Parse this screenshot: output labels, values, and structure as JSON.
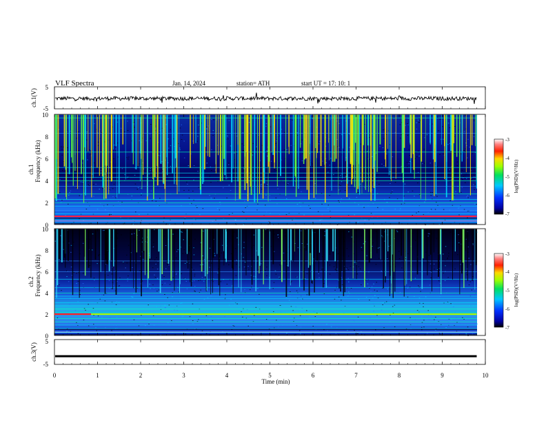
{
  "header": {
    "title": "VLF  Spectra",
    "date": "Jan. 14, 2024",
    "station": "station= ATH",
    "start": "start  UT  =    17: 10: 1"
  },
  "chart_data": [
    {
      "type": "line",
      "panel": "ch1-waveform",
      "ylabel": "ch.1(V)",
      "ylim": [
        -5,
        5
      ],
      "yticks": [
        "5",
        "-5"
      ],
      "x_range_min": [
        0,
        10
      ],
      "trace": "noisy waveform around -0.3 V"
    },
    {
      "type": "heatmap",
      "panel": "ch1-spectrogram",
      "ylabel_top": "ch.1",
      "ylabel": "Frequency  (kHz)",
      "ylim": [
        0,
        10
      ],
      "yticks": [
        "0",
        "2",
        "4",
        "6",
        "8",
        "10"
      ],
      "colorbar": {
        "label": "log(PSD)(V²/Hz)",
        "ticks": [
          "-3",
          "-4",
          "-5",
          "-6",
          "-7"
        ],
        "range": [
          -7,
          -3
        ]
      },
      "bands_khz": [
        0.2,
        0.5,
        1.0,
        1.3,
        1.7,
        2.0,
        2.3,
        2.8,
        3.5,
        4.0,
        4.3,
        4.7,
        5.2,
        6.6,
        8.3,
        9.7
      ],
      "strong_lines": [
        {
          "freq_khz": 0.75,
          "t_start_min": 0,
          "t_end_min": 9.8,
          "color": "#ff2040"
        }
      ]
    },
    {
      "type": "heatmap",
      "panel": "ch2-spectrogram",
      "ylabel_top": "ch.2",
      "ylabel": "Frequency  (kHz)",
      "ylim": [
        0,
        10
      ],
      "yticks": [
        "0",
        "2",
        "4",
        "6",
        "8",
        "10"
      ],
      "colorbar": {
        "label": "log(PSD)(V²/Hz)",
        "ticks": [
          "-3",
          "-4",
          "-5",
          "-6",
          "-7"
        ],
        "range": [
          -7,
          -3
        ]
      },
      "bands_khz": [
        0.3,
        0.7,
        1.0,
        1.3,
        1.6,
        2.0,
        2.2,
        2.5,
        2.8,
        3.1,
        3.5,
        3.7,
        4.0,
        4.5,
        5.3,
        6.0,
        7.0
      ],
      "strong_lines": [
        {
          "freq_khz": 2.0,
          "t_start_min": 0,
          "t_end_min": 0.85,
          "color": "#ff2020"
        },
        {
          "freq_khz": 2.0,
          "t_start_min": 5.45,
          "t_end_min": 6.5,
          "color": "#ff2020"
        },
        {
          "freq_khz": 2.0,
          "t_start_min": 0.85,
          "t_end_min": 9.8,
          "color": "#a8ff00"
        }
      ]
    },
    {
      "type": "line",
      "panel": "ch3-waveform",
      "ylabel": "ch.3(V)",
      "ylim": [
        -5,
        5
      ],
      "yticks": [
        "5",
        "-5"
      ],
      "trace": "flat near -1.7 V"
    }
  ],
  "x_axis": {
    "label": "Time  (min)",
    "ticks": [
      "0",
      "1",
      "2",
      "3",
      "4",
      "5",
      "6",
      "7",
      "8",
      "9",
      "10"
    ],
    "range": [
      0,
      10
    ],
    "data_end_min": 9.8
  }
}
